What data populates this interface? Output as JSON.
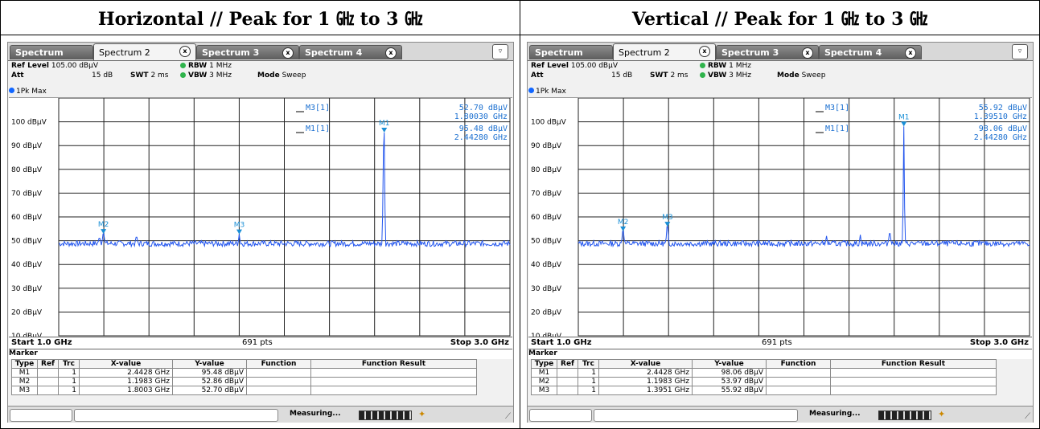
{
  "panels": [
    {
      "title": "Horizontal // Peak for 1 ㎓ to 3 ㎓",
      "tabs": [
        "Spectrum",
        "Spectrum 2",
        "Spectrum 3",
        "Spectrum 4"
      ],
      "active_tab": 1,
      "settings": {
        "ref_level_label": "Ref Level",
        "ref_level": "105.00 dBµV",
        "att_label": "Att",
        "att": "15 dB",
        "swt_label": "SWT",
        "swt": "2 ms",
        "rbw_label": "RBW",
        "rbw": "1 MHz",
        "vbw_label": "VBW",
        "vbw": "3 MHz",
        "mode_label": "Mode",
        "mode": "Sweep"
      },
      "trace_label": "1Pk Max",
      "readout": [
        {
          "name": "M3[1]",
          "y": "52.70 dBµV",
          "x": "1.80030 GHz"
        },
        {
          "name": "M1[1]",
          "y": "95.48 dBµV",
          "x": "2.44280 GHz"
        }
      ],
      "start": "Start 1.0 GHz",
      "pts": "691 pts",
      "stop": "Stop 3.0 GHz",
      "marker_header": "Marker",
      "table_headers": [
        "Type",
        "Ref",
        "Trc",
        "X-value",
        "Y-value",
        "Function",
        "Function Result"
      ],
      "markers": [
        {
          "type": "M1",
          "ref": "",
          "trc": "1",
          "x": "2.4428 GHz",
          "y": "95.48 dBµV"
        },
        {
          "type": "M2",
          "ref": "",
          "trc": "1",
          "x": "1.1983 GHz",
          "y": "52.86 dBµV"
        },
        {
          "type": "M3",
          "ref": "",
          "trc": "1",
          "x": "1.8003 GHz",
          "y": "52.70 dBµV"
        }
      ],
      "status": "Measuring...",
      "chart_data": {
        "type": "line",
        "xlim": [
          1.0,
          3.0
        ],
        "ylim": [
          10,
          110
        ],
        "y_ticks": [
          "100 dBµV",
          "90 dBµV",
          "80 dBµV",
          "70 dBµV",
          "60 dBµV",
          "50 dBµV",
          "40 dBµV",
          "30 dBµV",
          "20 dBµV",
          "10 dBµV"
        ],
        "markers": [
          {
            "label": "M1",
            "x": 2.4428,
            "y": 95.48
          },
          {
            "label": "M2",
            "x": 1.1983,
            "y": 52.86
          },
          {
            "label": "M3",
            "x": 1.8003,
            "y": 52.7
          }
        ],
        "noise_floor": 49,
        "spurs": [
          {
            "x": 1.18,
            "y": 51
          },
          {
            "x": 1.345,
            "y": 51.5
          },
          {
            "x": 2.44,
            "y": 88
          }
        ],
        "seed": 7
      }
    },
    {
      "title": "Vertical // Peak for 1 ㎓ to 3 ㎓",
      "tabs": [
        "Spectrum",
        "Spectrum 2",
        "Spectrum 3",
        "Spectrum 4"
      ],
      "active_tab": 1,
      "settings": {
        "ref_level_label": "Ref Level",
        "ref_level": "105.00 dBµV",
        "att_label": "Att",
        "att": "15 dB",
        "swt_label": "SWT",
        "swt": "2 ms",
        "rbw_label": "RBW",
        "rbw": "1 MHz",
        "vbw_label": "VBW",
        "vbw": "3 MHz",
        "mode_label": "Mode",
        "mode": "Sweep"
      },
      "trace_label": "1Pk Max",
      "readout": [
        {
          "name": "M3[1]",
          "y": "55.92 dBµV",
          "x": "1.39510 GHz"
        },
        {
          "name": "M1[1]",
          "y": "98.06 dBµV",
          "x": "2.44280 GHz"
        }
      ],
      "start": "Start 1.0 GHz",
      "pts": "691 pts",
      "stop": "Stop 3.0 GHz",
      "marker_header": "Marker",
      "table_headers": [
        "Type",
        "Ref",
        "Trc",
        "X-value",
        "Y-value",
        "Function",
        "Function Result"
      ],
      "markers": [
        {
          "type": "M1",
          "ref": "",
          "trc": "1",
          "x": "2.4428 GHz",
          "y": "98.06 dBµV"
        },
        {
          "type": "M2",
          "ref": "",
          "trc": "1",
          "x": "1.1983 GHz",
          "y": "53.97 dBµV"
        },
        {
          "type": "M3",
          "ref": "",
          "trc": "1",
          "x": "1.3951 GHz",
          "y": "55.92 dBµV"
        }
      ],
      "status": "Measuring...",
      "chart_data": {
        "type": "line",
        "xlim": [
          1.0,
          3.0
        ],
        "ylim": [
          10,
          110
        ],
        "y_ticks": [
          "100 dBµV",
          "90 dBµV",
          "80 dBµV",
          "70 dBµV",
          "60 dBµV",
          "50 dBµV",
          "40 dBµV",
          "30 dBµV",
          "20 dBµV",
          "10 dBµV"
        ],
        "markers": [
          {
            "label": "M1",
            "x": 2.4428,
            "y": 98.06
          },
          {
            "label": "M2",
            "x": 1.1983,
            "y": 53.97
          },
          {
            "label": "M3",
            "x": 1.3951,
            "y": 55.92
          }
        ],
        "noise_floor": 49,
        "spurs": [
          {
            "x": 2.1,
            "y": 52
          },
          {
            "x": 2.25,
            "y": 52.5
          },
          {
            "x": 2.38,
            "y": 53
          }
        ],
        "seed": 13
      }
    }
  ]
}
